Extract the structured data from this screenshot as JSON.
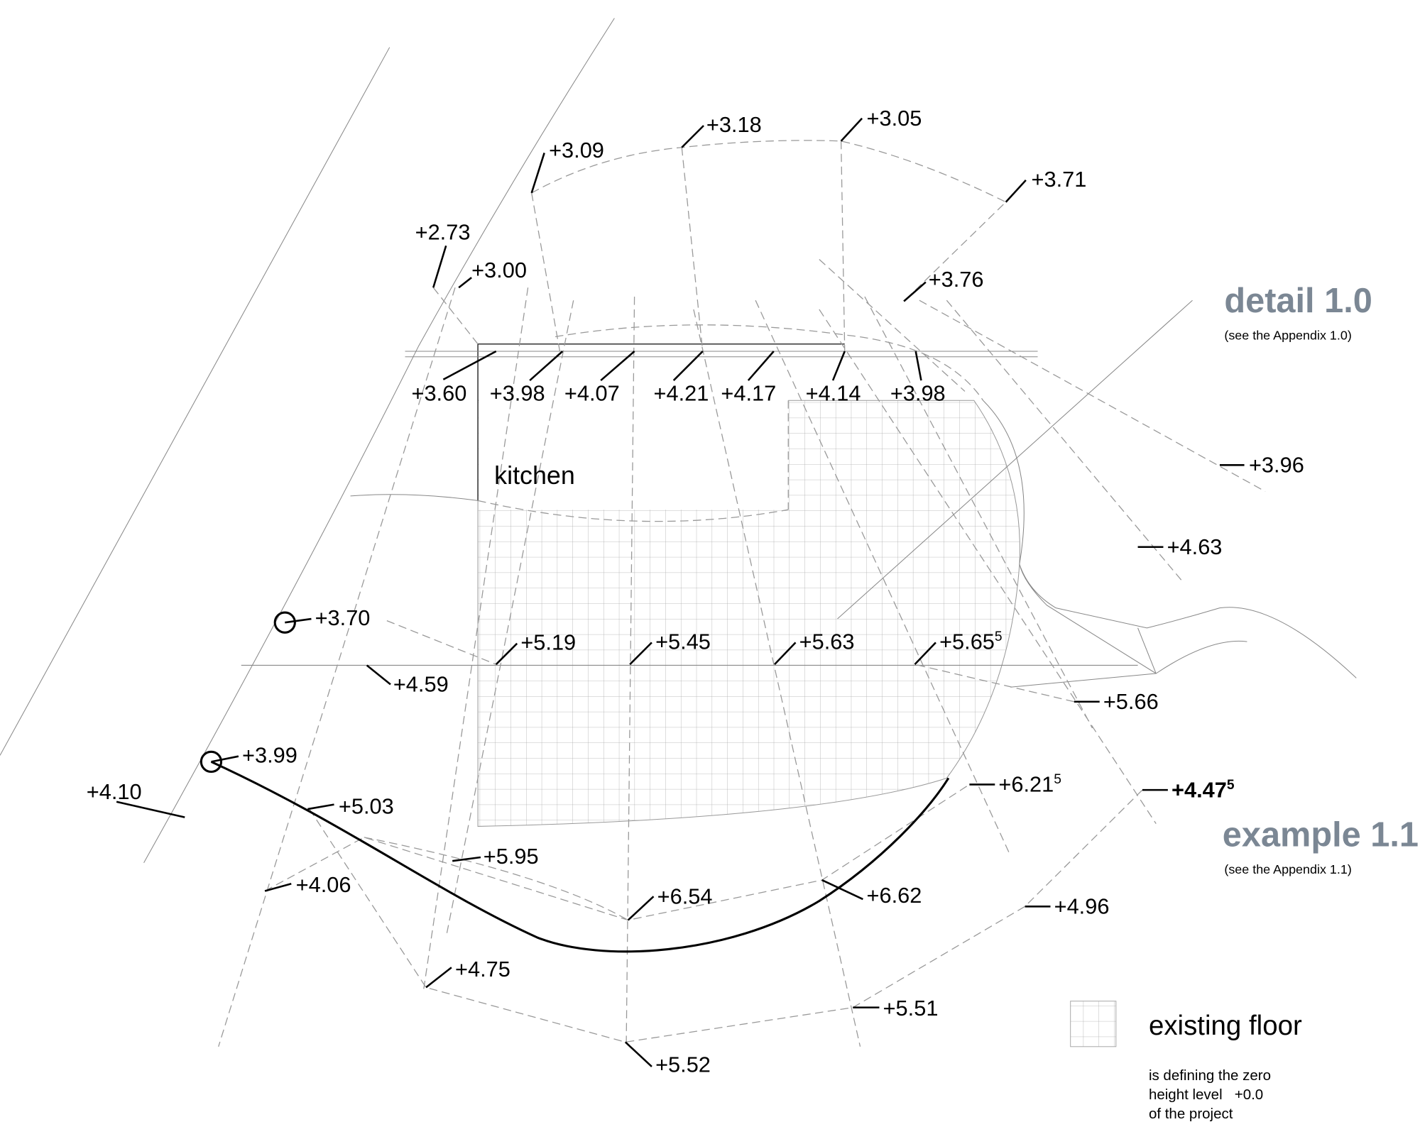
{
  "room_label": "kitchen",
  "details": [
    {
      "title": "detail 1.0",
      "note": "(see the Appendix 1.0)"
    },
    {
      "title": "example 1.1",
      "note": "(see the Appendix 1.1)"
    }
  ],
  "legend": {
    "title": "existing floor",
    "note": [
      "is defining the zero",
      "height level   +0.0",
      "of the project"
    ]
  },
  "levels": [
    {
      "text": "+3.09"
    },
    {
      "text": "+3.18"
    },
    {
      "text": "+3.05"
    },
    {
      "text": "+3.71"
    },
    {
      "text": "+2.73"
    },
    {
      "text": "+3.00"
    },
    {
      "text": "+3.76"
    },
    {
      "text": "+3.60"
    },
    {
      "text": "+3.98"
    },
    {
      "text": "+4.07"
    },
    {
      "text": "+4.21"
    },
    {
      "text": "+4.17"
    },
    {
      "text": "+4.14"
    },
    {
      "text": "+3.98"
    },
    {
      "text": "+3.96"
    },
    {
      "text": "+4.63"
    },
    {
      "text": "+3.70"
    },
    {
      "text": "+5.19"
    },
    {
      "text": "+5.45"
    },
    {
      "text": "+5.63"
    },
    {
      "text": "+5.65",
      "sup": "5"
    },
    {
      "text": "+4.59"
    },
    {
      "text": "+5.66"
    },
    {
      "text": "+3.99"
    },
    {
      "text": "+4.10"
    },
    {
      "text": "+6.21",
      "sup": "5"
    },
    {
      "text": "+4.47",
      "sup": "5"
    },
    {
      "text": "+5.03"
    },
    {
      "text": "+5.95"
    },
    {
      "text": "+4.06"
    },
    {
      "text": "+6.54"
    },
    {
      "text": "+6.62"
    },
    {
      "text": "+4.96"
    },
    {
      "text": "+4.75"
    },
    {
      "text": "+5.51"
    },
    {
      "text": "+5.52"
    }
  ]
}
